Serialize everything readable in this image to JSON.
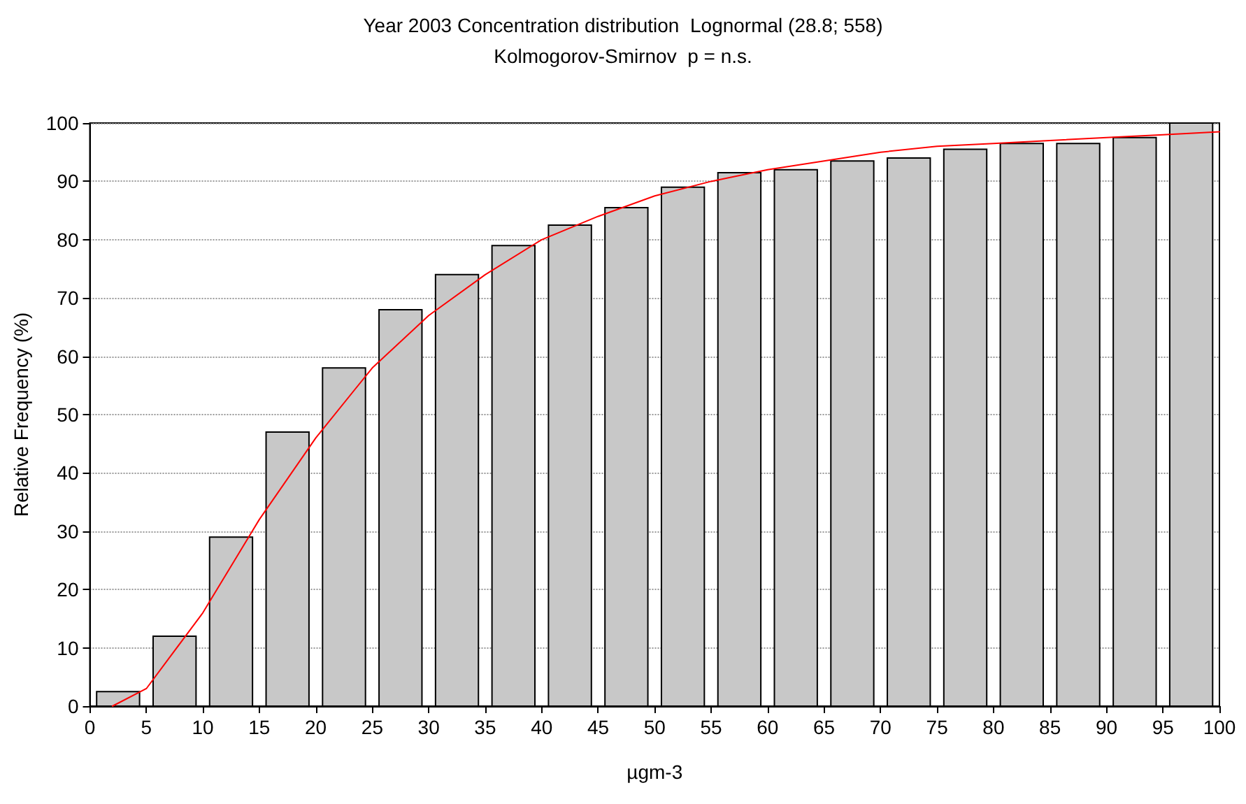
{
  "chart_data": {
    "type": "histogram",
    "title": "Year 2003 Concentration distribution  Lognormal (28.8; 558)",
    "subtitle": "Kolmogorov-Smirnov  p = n.s.",
    "xlabel": "µgm-3",
    "ylabel": "Relative Frequency (%)",
    "bins": [
      0,
      5,
      10,
      15,
      20,
      25,
      30,
      35,
      40,
      45,
      50,
      55,
      60,
      65,
      70,
      75,
      80,
      85,
      90,
      95,
      100
    ],
    "values": [
      2.5,
      12,
      29,
      47,
      58,
      68,
      74,
      79,
      82.5,
      85.5,
      89,
      91.5,
      92,
      93.5,
      94,
      95.5,
      96.5,
      96.5,
      97.5,
      100
    ],
    "color": "#c8c8c8",
    "series": [
      {
        "type": "line",
        "color": "#ff0000",
        "x": [
          2,
          5,
          10,
          15,
          20,
          25,
          30,
          35,
          40,
          45,
          50,
          55,
          60,
          65,
          70,
          75,
          80,
          85,
          90,
          95,
          100
        ],
        "values": [
          0,
          3,
          16,
          32,
          46,
          58,
          67,
          74,
          80,
          84,
          87.5,
          90,
          92,
          93.5,
          95,
          96,
          96.5,
          97,
          97.5,
          98,
          98.5
        ]
      }
    ],
    "xlim": [
      0,
      100
    ],
    "xticks": [
      0,
      5,
      10,
      15,
      20,
      25,
      30,
      35,
      40,
      45,
      50,
      55,
      60,
      65,
      70,
      75,
      80,
      85,
      90,
      95,
      100
    ],
    "ylim": [
      0,
      100
    ],
    "yticks": [
      0,
      10,
      20,
      30,
      40,
      50,
      60,
      70,
      80,
      90,
      100
    ],
    "grid": "y",
    "marker": "none",
    "line_style": "solid"
  }
}
